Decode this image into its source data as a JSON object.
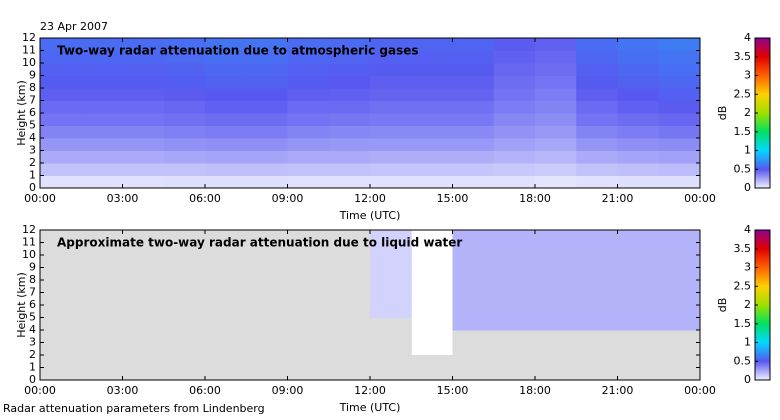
{
  "date": "23 Apr 2007",
  "footer": "Radar attenuation parameters from Lindenberg",
  "chart_data": [
    {
      "type": "heatmap",
      "title": "Two-way radar attenuation due to atmospheric gases",
      "xlabel": "Time (UTC)",
      "ylabel": "Height (km)",
      "x": [
        0,
        1.5,
        3,
        4.5,
        6,
        7.5,
        9,
        10.5,
        12,
        13.5,
        15,
        16.5,
        18,
        19.5,
        21,
        22.5
      ],
      "y": [
        0,
        1,
        2,
        3,
        4,
        5,
        6,
        7,
        8,
        9,
        10,
        11
      ],
      "values": [
        [
          0.05,
          0.05,
          0.05,
          0.06,
          0.06,
          0.06,
          0.05,
          0.05,
          0.05,
          0.05,
          0.05,
          0.05,
          0.04,
          0.05,
          0.06,
          0.06
        ],
        [
          0.15,
          0.15,
          0.15,
          0.15,
          0.16,
          0.16,
          0.15,
          0.15,
          0.14,
          0.14,
          0.14,
          0.13,
          0.12,
          0.15,
          0.16,
          0.17
        ],
        [
          0.23,
          0.23,
          0.23,
          0.24,
          0.25,
          0.25,
          0.23,
          0.23,
          0.22,
          0.22,
          0.22,
          0.2,
          0.19,
          0.23,
          0.25,
          0.26
        ],
        [
          0.3,
          0.3,
          0.3,
          0.31,
          0.32,
          0.32,
          0.3,
          0.29,
          0.29,
          0.29,
          0.29,
          0.26,
          0.24,
          0.3,
          0.32,
          0.33
        ],
        [
          0.36,
          0.36,
          0.36,
          0.37,
          0.38,
          0.38,
          0.36,
          0.35,
          0.34,
          0.34,
          0.34,
          0.31,
          0.29,
          0.36,
          0.38,
          0.4
        ],
        [
          0.41,
          0.41,
          0.41,
          0.42,
          0.43,
          0.43,
          0.41,
          0.4,
          0.39,
          0.39,
          0.39,
          0.35,
          0.33,
          0.41,
          0.43,
          0.45
        ],
        [
          0.44,
          0.44,
          0.44,
          0.45,
          0.47,
          0.47,
          0.44,
          0.44,
          0.42,
          0.42,
          0.42,
          0.38,
          0.36,
          0.44,
          0.47,
          0.49
        ],
        [
          0.48,
          0.48,
          0.48,
          0.49,
          0.5,
          0.5,
          0.48,
          0.47,
          0.46,
          0.46,
          0.46,
          0.41,
          0.38,
          0.48,
          0.5,
          0.53
        ],
        [
          0.51,
          0.51,
          0.51,
          0.52,
          0.54,
          0.54,
          0.51,
          0.5,
          0.48,
          0.48,
          0.48,
          0.43,
          0.41,
          0.51,
          0.54,
          0.56
        ],
        [
          0.53,
          0.53,
          0.53,
          0.54,
          0.56,
          0.56,
          0.53,
          0.52,
          0.51,
          0.51,
          0.51,
          0.45,
          0.43,
          0.53,
          0.56,
          0.59
        ],
        [
          0.56,
          0.56,
          0.56,
          0.57,
          0.59,
          0.59,
          0.56,
          0.55,
          0.53,
          0.53,
          0.53,
          0.47,
          0.45,
          0.56,
          0.59,
          0.61
        ],
        [
          0.58,
          0.58,
          0.58,
          0.59,
          0.61,
          0.61,
          0.58,
          0.57,
          0.55,
          0.55,
          0.55,
          0.49,
          0.47,
          0.58,
          0.61,
          0.64
        ]
      ],
      "xlim": [
        0,
        24
      ],
      "ylim": [
        0,
        12
      ],
      "xticks": [
        {
          "value": 0,
          "label": "00:00"
        },
        {
          "value": 3,
          "label": "03:00"
        },
        {
          "value": 6,
          "label": "06:00"
        },
        {
          "value": 9,
          "label": "09:00"
        },
        {
          "value": 12,
          "label": "12:00"
        },
        {
          "value": 15,
          "label": "15:00"
        },
        {
          "value": 18,
          "label": "18:00"
        },
        {
          "value": 21,
          "label": "21:00"
        },
        {
          "value": 24,
          "label": "00:00"
        }
      ],
      "yticks": [
        0,
        1,
        2,
        3,
        4,
        5,
        6,
        7,
        8,
        9,
        10,
        11,
        12
      ],
      "colorbar": {
        "label": "dB",
        "zlim": [
          0,
          4
        ],
        "ticks": [
          0,
          0.5,
          1,
          1.5,
          2,
          2.5,
          3,
          3.5,
          4
        ],
        "colors": [
          "#f0f0ff",
          "#5858f0",
          "#00d8ff",
          "#00e060",
          "#a0e000",
          "#ffd000",
          "#ff6000",
          "#e00000",
          "#900090"
        ]
      }
    },
    {
      "type": "heatmap",
      "title": "Approximate two-way radar attenuation due to liquid water",
      "xlabel": "Time (UTC)",
      "ylabel": "Height (km)",
      "zero_color": "#dcdcdc",
      "x": [
        0,
        1.5,
        3,
        4.5,
        6,
        7.5,
        9,
        10.5,
        12,
        13.5,
        15,
        16.5,
        18,
        19.5,
        21,
        22.5
      ],
      "y": [
        0,
        1,
        2,
        3,
        4,
        5,
        6,
        7,
        8,
        9,
        10,
        11
      ],
      "values": [
        [
          0,
          0,
          0,
          0,
          0,
          0,
          0,
          0,
          0,
          0,
          0,
          0,
          0,
          0,
          0,
          0
        ],
        [
          0,
          0,
          0,
          0,
          0,
          0,
          0,
          0,
          0,
          0,
          0,
          0,
          0,
          0,
          0,
          0
        ],
        [
          0,
          0,
          0,
          0,
          0,
          0,
          0,
          0,
          0,
          null,
          0,
          0,
          0,
          0,
          0,
          0
        ],
        [
          0,
          0,
          0,
          0,
          0,
          0,
          0,
          0,
          0,
          null,
          0,
          0,
          0,
          0,
          0,
          0
        ],
        [
          0,
          0,
          0,
          0,
          0,
          0,
          0,
          0,
          0,
          null,
          0.2,
          0.2,
          0.2,
          0.2,
          0.2,
          0.2
        ],
        [
          0,
          0,
          0,
          0,
          0,
          0,
          0,
          0,
          0.1,
          null,
          0.2,
          0.2,
          0.2,
          0.2,
          0.2,
          0.2
        ],
        [
          0,
          0,
          0,
          0,
          0,
          0,
          0,
          0,
          0.1,
          null,
          0.2,
          0.2,
          0.2,
          0.2,
          0.2,
          0.2
        ],
        [
          0,
          0,
          0,
          0,
          0,
          0,
          0,
          0,
          0.1,
          null,
          0.2,
          0.2,
          0.2,
          0.2,
          0.2,
          0.2
        ],
        [
          0,
          0,
          0,
          0,
          0,
          0,
          0,
          0,
          0.1,
          null,
          0.2,
          0.2,
          0.2,
          0.2,
          0.2,
          0.2
        ],
        [
          0,
          0,
          0,
          0,
          0,
          0,
          0,
          0,
          0.1,
          null,
          0.2,
          0.2,
          0.2,
          0.2,
          0.2,
          0.2
        ],
        [
          0,
          0,
          0,
          0,
          0,
          0,
          0,
          0,
          0.1,
          null,
          0.2,
          0.2,
          0.2,
          0.2,
          0.2,
          0.2
        ],
        [
          0,
          0,
          0,
          0,
          0,
          0,
          0,
          0,
          0.1,
          null,
          0.2,
          0.2,
          0.2,
          0.2,
          0.2,
          0.2
        ]
      ],
      "xlim": [
        0,
        24
      ],
      "ylim": [
        0,
        12
      ],
      "xticks": [
        {
          "value": 0,
          "label": "00:00"
        },
        {
          "value": 3,
          "label": "03:00"
        },
        {
          "value": 6,
          "label": "06:00"
        },
        {
          "value": 9,
          "label": "09:00"
        },
        {
          "value": 12,
          "label": "12:00"
        },
        {
          "value": 15,
          "label": "15:00"
        },
        {
          "value": 18,
          "label": "18:00"
        },
        {
          "value": 21,
          "label": "21:00"
        },
        {
          "value": 24,
          "label": "00:00"
        }
      ],
      "yticks": [
        0,
        1,
        2,
        3,
        4,
        5,
        6,
        7,
        8,
        9,
        10,
        11,
        12
      ],
      "colorbar": {
        "label": "dB",
        "zlim": [
          0,
          4
        ],
        "ticks": [
          0,
          0.5,
          1,
          1.5,
          2,
          2.5,
          3,
          3.5,
          4
        ],
        "colors": [
          "#f0f0ff",
          "#5858f0",
          "#00d8ff",
          "#00e060",
          "#a0e000",
          "#ffd000",
          "#ff6000",
          "#e00000",
          "#900090"
        ]
      }
    }
  ]
}
